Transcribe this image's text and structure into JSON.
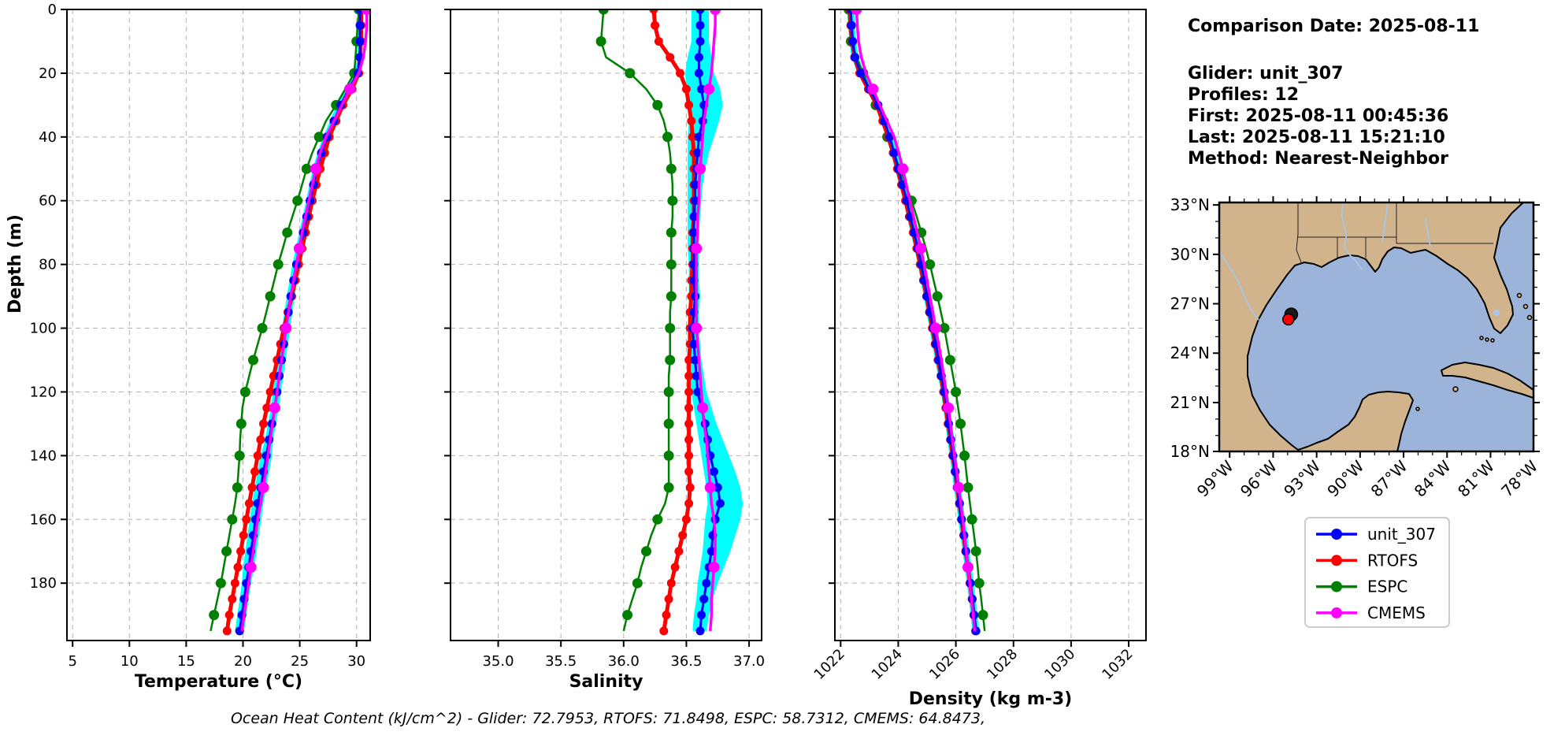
{
  "info_panel": {
    "comparison_date": "Comparison Date: 2025-08-11",
    "glider": "Glider: unit_307",
    "profiles": "Profiles: 12",
    "first": "First: 2025-08-11 00:45:36",
    "last": "Last: 2025-08-11 15:21:10",
    "method": "Method: Nearest-Neighbor"
  },
  "caption": "Ocean Heat Content (kJ/cm^2) - Glider: 72.7953,  RTOFS: 71.8498,  ESPC: 58.7312,  CMEMS: 64.8473,",
  "colors": {
    "unit_307": "#0000ff",
    "RTOFS": "#ff0000",
    "ESPC": "#008000",
    "CMEMS": "#ff00ff",
    "band": "#00ffff"
  },
  "legend": {
    "entries": [
      {
        "label": "unit_307",
        "color": "#0000ff"
      },
      {
        "label": "RTOFS",
        "color": "#ff0000"
      },
      {
        "label": "ESPC",
        "color": "#008000"
      },
      {
        "label": "CMEMS",
        "color": "#ff00ff"
      }
    ]
  },
  "map": {
    "land_color": "#d2b48c",
    "ocean_color": "#9cb4da",
    "river_color": "#a9c6e8",
    "lat_ticks": [
      {
        "label": "33°N",
        "lat": 33
      },
      {
        "label": "30°N",
        "lat": 30
      },
      {
        "label": "27°N",
        "lat": 27
      },
      {
        "label": "24°N",
        "lat": 24
      },
      {
        "label": "21°N",
        "lat": 21
      },
      {
        "label": "18°N",
        "lat": 18
      }
    ],
    "lon_ticks": [
      {
        "label": "99°W",
        "lon": 99
      },
      {
        "label": "96°W",
        "lon": 96
      },
      {
        "label": "93°W",
        "lon": 93
      },
      {
        "label": "90°W",
        "lon": 90
      },
      {
        "label": "87°W",
        "lon": 87
      },
      {
        "label": "84°W",
        "lon": 84
      },
      {
        "label": "81°W",
        "lon": 81
      },
      {
        "label": "78°W",
        "lon": 78
      }
    ],
    "markers": [
      {
        "name": "model-point-marker",
        "color": "#1a1a1a",
        "lat": 26.35,
        "lon": 94.75,
        "r": 8
      },
      {
        "name": "glider-position-marker",
        "color": "#ff0000",
        "lat": 26.05,
        "lon": 94.95,
        "r": 7
      }
    ]
  },
  "chart_data": [
    {
      "id": "temperature",
      "type": "line",
      "xlabel": "Temperature (°C)",
      "ylabel": "Depth (m)",
      "xlim": [
        4.5,
        31.2
      ],
      "ylim": [
        0,
        198
      ],
      "xticks": [
        5,
        10,
        15,
        20,
        25,
        30
      ],
      "xtick_labels": [
        "5",
        "10",
        "15",
        "20",
        "25",
        "30"
      ],
      "yticks": [
        0,
        20,
        40,
        60,
        80,
        100,
        120,
        140,
        160,
        180
      ],
      "show_ytick_labels": true,
      "rotate_xtick_labels": false,
      "grid": true,
      "depths": [
        0,
        5,
        10,
        15,
        20,
        25,
        30,
        35,
        40,
        45,
        50,
        55,
        60,
        65,
        70,
        75,
        80,
        85,
        90,
        95,
        100,
        105,
        110,
        115,
        120,
        125,
        130,
        135,
        140,
        145,
        150,
        155,
        160,
        165,
        170,
        175,
        180,
        185,
        190,
        195
      ],
      "band": {
        "color": "#00ffff",
        "around": "unit_307",
        "delta": [
          0.2,
          0.2,
          0.2,
          0.2,
          0.3,
          0.35,
          0.35,
          0.35,
          0.35,
          0.35,
          0.35,
          0.35,
          0.35,
          0.35,
          0.35,
          0.35,
          0.35,
          0.35,
          0.35,
          0.35,
          0.35,
          0.35,
          0.35,
          0.35,
          0.35,
          0.35,
          0.35,
          0.35,
          0.5,
          0.5,
          0.5,
          0.5,
          0.5,
          0.5,
          0.5,
          0.5,
          0.4,
          0.4,
          0.4,
          0.4
        ]
      },
      "series": [
        {
          "name": "ESPC",
          "color": "#008000",
          "line_width": 2.5,
          "marker_r": 6.5,
          "marker_every": 2,
          "values": [
            30.2,
            30.1,
            30.0,
            29.9,
            29.8,
            29.0,
            28.2,
            27.3,
            26.7,
            26.1,
            25.6,
            25.2,
            24.8,
            24.35,
            23.9,
            23.5,
            23.1,
            22.75,
            22.4,
            22.05,
            21.7,
            21.3,
            20.9,
            20.55,
            20.2,
            19.95,
            19.85,
            19.75,
            19.7,
            19.6,
            19.5,
            19.3,
            19.05,
            18.8,
            18.55,
            18.3,
            18.05,
            17.75,
            17.45,
            17.15
          ]
        },
        {
          "name": "RTOFS",
          "color": "#ff0000",
          "line_width": 5,
          "marker_r": 5.5,
          "marker_every": 1,
          "values": [
            30.4,
            30.4,
            30.4,
            30.3,
            30.2,
            29.6,
            28.8,
            28.2,
            27.6,
            27.2,
            26.8,
            26.45,
            26.1,
            25.8,
            25.5,
            25.2,
            24.9,
            24.6,
            24.3,
            23.95,
            23.6,
            23.3,
            23.0,
            22.7,
            22.4,
            22.1,
            21.8,
            21.55,
            21.3,
            21.05,
            20.8,
            20.55,
            20.3,
            20.05,
            19.8,
            19.55,
            19.3,
            19.05,
            18.8,
            18.6
          ]
        },
        {
          "name": "unit_307",
          "color": "#0000ff",
          "line_width": 3,
          "marker_r": 5.5,
          "marker_every": 1,
          "values": [
            30.3,
            30.3,
            30.3,
            30.3,
            30.1,
            29.3,
            28.6,
            28.0,
            27.4,
            26.9,
            26.5,
            26.2,
            25.9,
            25.6,
            25.3,
            25.0,
            24.7,
            24.45,
            24.2,
            24.0,
            23.8,
            23.6,
            23.4,
            23.2,
            23.0,
            22.8,
            22.55,
            22.3,
            22.05,
            21.8,
            21.55,
            21.3,
            21.1,
            20.9,
            20.7,
            20.5,
            20.3,
            20.1,
            19.9,
            19.7
          ]
        },
        {
          "name": "CMEMS",
          "color": "#ff00ff",
          "line_width": 3.5,
          "marker_r": 7,
          "marker_every": 5,
          "values": [
            30.9,
            30.9,
            30.8,
            30.6,
            30.2,
            29.4,
            28.7,
            28.0,
            27.3,
            26.8,
            26.4,
            26.1,
            25.8,
            25.5,
            25.2,
            24.95,
            24.7,
            24.45,
            24.2,
            24.0,
            23.8,
            23.6,
            23.4,
            23.2,
            23.0,
            22.8,
            22.6,
            22.4,
            22.2,
            22.0,
            21.8,
            21.55,
            21.3,
            21.1,
            20.9,
            20.7,
            20.5,
            20.3,
            20.1,
            19.9
          ]
        }
      ]
    },
    {
      "id": "salinity",
      "type": "line",
      "xlabel": "Salinity",
      "ylabel": "",
      "xlim": [
        34.62,
        37.1
      ],
      "ylim": [
        0,
        198
      ],
      "xticks": [
        35.0,
        35.5,
        36.0,
        36.5,
        37.0
      ],
      "xtick_labels": [
        "35.0",
        "35.5",
        "36.0",
        "36.5",
        "37.0"
      ],
      "yticks": [
        0,
        20,
        40,
        60,
        80,
        100,
        120,
        140,
        160,
        180
      ],
      "show_ytick_labels": false,
      "rotate_xtick_labels": false,
      "grid": true,
      "depths": [
        0,
        5,
        10,
        15,
        20,
        25,
        30,
        35,
        40,
        45,
        50,
        55,
        60,
        65,
        70,
        75,
        80,
        85,
        90,
        95,
        100,
        105,
        110,
        115,
        120,
        125,
        130,
        135,
        140,
        145,
        150,
        155,
        160,
        165,
        170,
        175,
        180,
        185,
        190,
        195
      ],
      "band": {
        "color": "#00ffff",
        "around": "unit_307",
        "hi": [
          36.68,
          36.68,
          36.68,
          36.7,
          36.72,
          36.77,
          36.79,
          36.76,
          36.72,
          36.68,
          36.65,
          36.63,
          36.62,
          36.61,
          36.6,
          36.6,
          36.6,
          36.6,
          36.61,
          36.6,
          36.6,
          36.61,
          36.62,
          36.64,
          36.66,
          36.7,
          36.74,
          36.79,
          36.84,
          36.89,
          36.93,
          36.95,
          36.93,
          36.89,
          36.85,
          36.8,
          36.75,
          36.71,
          36.68,
          36.66
        ],
        "lo": [
          36.54,
          36.54,
          36.54,
          36.51,
          36.49,
          36.5,
          36.52,
          36.52,
          36.51,
          36.51,
          36.51,
          36.51,
          36.51,
          36.51,
          36.51,
          36.51,
          36.52,
          36.52,
          36.52,
          36.52,
          36.51,
          36.51,
          36.52,
          36.53,
          36.54,
          36.56,
          36.58,
          36.6,
          36.62,
          36.64,
          36.66,
          36.67,
          36.65,
          36.64,
          36.63,
          36.61,
          36.59,
          36.58,
          36.56,
          36.55
        ]
      },
      "series": [
        {
          "name": "ESPC",
          "color": "#008000",
          "line_width": 2.5,
          "marker_r": 6.5,
          "marker_every": 2,
          "values": [
            35.84,
            35.83,
            35.82,
            35.86,
            36.05,
            36.18,
            36.27,
            36.32,
            36.35,
            36.37,
            36.38,
            36.39,
            36.39,
            36.39,
            36.38,
            36.38,
            36.38,
            36.38,
            36.38,
            36.37,
            36.37,
            36.37,
            36.37,
            36.36,
            36.36,
            36.36,
            36.36,
            36.36,
            36.36,
            36.36,
            36.36,
            36.33,
            36.27,
            36.22,
            36.18,
            36.14,
            36.11,
            36.07,
            36.03,
            36.0
          ]
        },
        {
          "name": "RTOFS",
          "color": "#ff0000",
          "line_width": 5,
          "marker_r": 5.5,
          "marker_every": 1,
          "values": [
            36.24,
            36.25,
            36.28,
            36.37,
            36.45,
            36.5,
            36.52,
            36.54,
            36.55,
            36.56,
            36.56,
            36.56,
            36.56,
            36.56,
            36.55,
            36.55,
            36.55,
            36.54,
            36.54,
            36.53,
            36.53,
            36.53,
            36.52,
            36.52,
            36.52,
            36.52,
            36.52,
            36.52,
            36.52,
            36.52,
            36.53,
            36.52,
            36.5,
            36.47,
            36.44,
            36.41,
            36.38,
            36.36,
            36.34,
            36.32
          ]
        },
        {
          "name": "unit_307",
          "color": "#0000ff",
          "line_width": 3,
          "marker_r": 5.5,
          "marker_every": 1,
          "values": [
            36.61,
            36.61,
            36.61,
            36.6,
            36.6,
            36.62,
            36.64,
            36.63,
            36.6,
            36.59,
            36.58,
            36.57,
            36.57,
            36.56,
            36.56,
            36.56,
            36.56,
            36.56,
            36.57,
            36.56,
            36.55,
            36.56,
            36.57,
            36.58,
            36.59,
            36.62,
            36.65,
            36.67,
            36.69,
            36.72,
            36.75,
            36.77,
            36.73,
            36.71,
            36.7,
            36.68,
            36.66,
            36.64,
            36.62,
            36.61
          ]
        },
        {
          "name": "CMEMS",
          "color": "#ff00ff",
          "line_width": 3.5,
          "marker_r": 7,
          "marker_every": 5,
          "values": [
            36.73,
            36.73,
            36.72,
            36.71,
            36.7,
            36.68,
            36.66,
            36.64,
            36.63,
            36.62,
            36.61,
            36.6,
            36.6,
            36.59,
            36.59,
            36.58,
            36.58,
            36.58,
            36.58,
            36.58,
            36.58,
            36.59,
            36.6,
            36.61,
            36.62,
            36.63,
            36.64,
            36.66,
            36.67,
            36.68,
            36.69,
            36.7,
            36.72,
            36.73,
            36.73,
            36.72,
            36.71,
            36.7,
            36.7,
            36.69
          ]
        }
      ]
    },
    {
      "id": "density",
      "type": "line",
      "xlabel": "Density (kg m-3)",
      "ylabel": "",
      "xlim": [
        1021.8,
        1032.6
      ],
      "ylim": [
        0,
        198
      ],
      "xticks": [
        1022,
        1024,
        1026,
        1028,
        1030,
        1032
      ],
      "xtick_labels": [
        "1022",
        "1024",
        "1026",
        "1028",
        "1030",
        "1032"
      ],
      "yticks": [
        0,
        20,
        40,
        60,
        80,
        100,
        120,
        140,
        160,
        180
      ],
      "show_ytick_labels": false,
      "rotate_xtick_labels": true,
      "grid": true,
      "depths": [
        0,
        5,
        10,
        15,
        20,
        25,
        30,
        35,
        40,
        45,
        50,
        55,
        60,
        65,
        70,
        75,
        80,
        85,
        90,
        95,
        100,
        105,
        110,
        115,
        120,
        125,
        130,
        135,
        140,
        145,
        150,
        155,
        160,
        165,
        170,
        175,
        180,
        185,
        190,
        195
      ],
      "band": {
        "color": "#00ffff",
        "around": "unit_307",
        "delta": 0.12
      },
      "series": [
        {
          "name": "ESPC",
          "color": "#008000",
          "line_width": 2.5,
          "marker_r": 6.5,
          "marker_every": 2,
          "values": [
            1022.28,
            1022.3,
            1022.36,
            1022.55,
            1022.78,
            1023.0,
            1023.22,
            1023.42,
            1023.62,
            1023.84,
            1024.06,
            1024.26,
            1024.46,
            1024.64,
            1024.8,
            1024.96,
            1025.1,
            1025.23,
            1025.36,
            1025.48,
            1025.6,
            1025.7,
            1025.8,
            1025.9,
            1026.0,
            1026.08,
            1026.16,
            1026.23,
            1026.3,
            1026.36,
            1026.42,
            1026.49,
            1026.56,
            1026.63,
            1026.7,
            1026.76,
            1026.81,
            1026.88,
            1026.94,
            1027.0
          ]
        },
        {
          "name": "RTOFS",
          "color": "#ff0000",
          "line_width": 5,
          "marker_r": 5.5,
          "marker_every": 1,
          "values": [
            1022.32,
            1022.35,
            1022.4,
            1022.48,
            1022.66,
            1022.96,
            1023.26,
            1023.46,
            1023.65,
            1023.82,
            1023.97,
            1024.11,
            1024.25,
            1024.38,
            1024.52,
            1024.64,
            1024.76,
            1024.87,
            1024.98,
            1025.08,
            1025.18,
            1025.28,
            1025.38,
            1025.48,
            1025.57,
            1025.65,
            1025.73,
            1025.81,
            1025.89,
            1025.97,
            1026.04,
            1026.12,
            1026.19,
            1026.27,
            1026.34,
            1026.42,
            1026.49,
            1026.56,
            1026.62,
            1026.68
          ]
        },
        {
          "name": "unit_307",
          "color": "#0000ff",
          "line_width": 3,
          "marker_r": 5.5,
          "marker_every": 1,
          "values": [
            1022.35,
            1022.38,
            1022.42,
            1022.5,
            1022.7,
            1023.0,
            1023.3,
            1023.52,
            1023.7,
            1023.86,
            1024.0,
            1024.15,
            1024.3,
            1024.42,
            1024.55,
            1024.68,
            1024.8,
            1024.9,
            1025.0,
            1025.1,
            1025.2,
            1025.3,
            1025.4,
            1025.5,
            1025.6,
            1025.68,
            1025.75,
            1025.83,
            1025.9,
            1025.98,
            1026.05,
            1026.13,
            1026.2,
            1026.28,
            1026.35,
            1026.43,
            1026.5,
            1026.57,
            1026.63,
            1026.7
          ]
        },
        {
          "name": "CMEMS",
          "color": "#ff00ff",
          "line_width": 3.5,
          "marker_r": 7,
          "marker_every": 5,
          "values": [
            1022.55,
            1022.58,
            1022.62,
            1022.72,
            1022.88,
            1023.12,
            1023.36,
            1023.61,
            1023.86,
            1024.02,
            1024.16,
            1024.28,
            1024.4,
            1024.53,
            1024.66,
            1024.78,
            1024.9,
            1025.0,
            1025.1,
            1025.2,
            1025.3,
            1025.4,
            1025.5,
            1025.58,
            1025.66,
            1025.74,
            1025.81,
            1025.88,
            1025.95,
            1026.03,
            1026.1,
            1026.17,
            1026.24,
            1026.3,
            1026.36,
            1026.42,
            1026.48,
            1026.54,
            1026.6,
            1026.65
          ]
        }
      ]
    }
  ]
}
